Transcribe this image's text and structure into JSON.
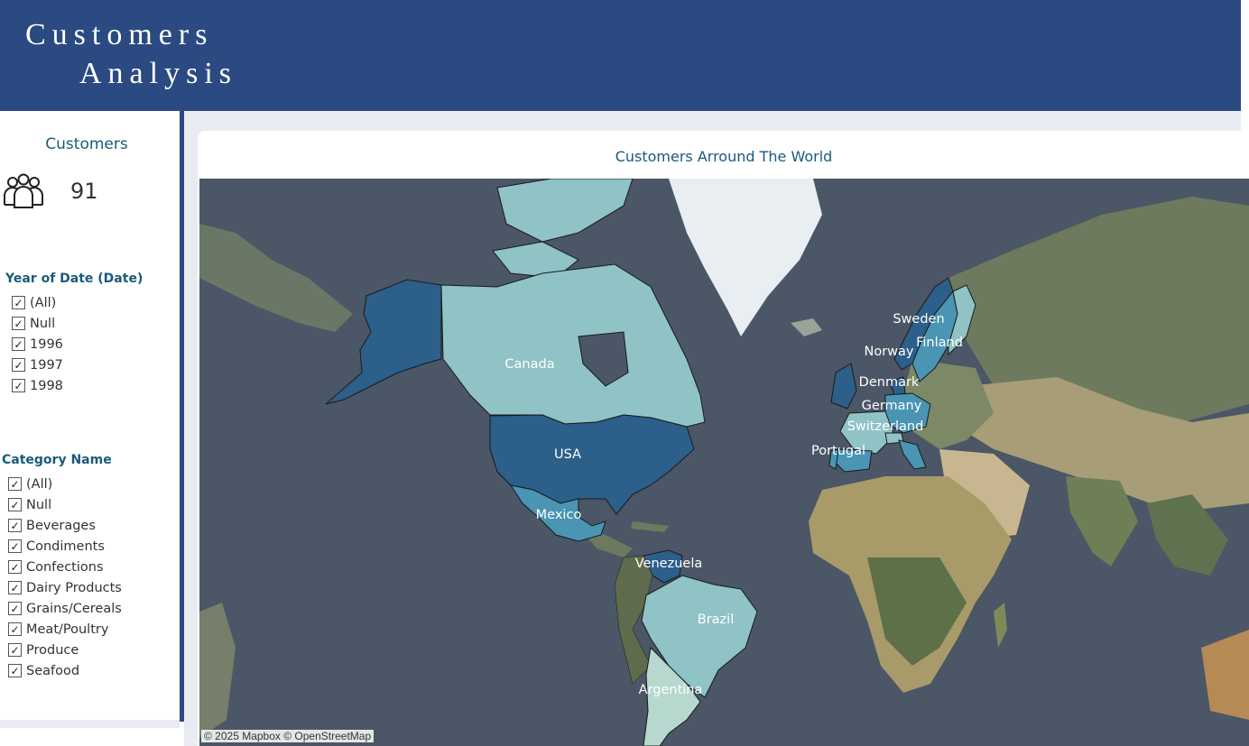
{
  "header": {
    "title_line1": "Customers",
    "title_line2": "Analysis",
    "background_color": "#2b4a82"
  },
  "kpi": {
    "title": "Customers",
    "icon": "people-group-icon",
    "value": "91"
  },
  "filters": {
    "year": {
      "title": "Year of Date (Date)",
      "options": [
        "(All)",
        "Null",
        "1996",
        "1997",
        "1998"
      ],
      "checked": [
        true,
        true,
        true,
        true,
        true
      ]
    },
    "category": {
      "title": "Category Name",
      "options": [
        "(All)",
        "Null",
        "Beverages",
        "Condiments",
        "Confections",
        "Dairy Products",
        "Grains/Cereals",
        "Meat/Poultry",
        "Produce",
        "Seafood"
      ],
      "checked": [
        true,
        true,
        true,
        true,
        true,
        true,
        true,
        true,
        true,
        true
      ]
    }
  },
  "map": {
    "title": "Customers Arround The World",
    "attribution": "© 2025 Mapbox © OpenStreetMap",
    "countries": [
      {
        "name": "Canada",
        "shade": "light"
      },
      {
        "name": "USA",
        "shade": "dark"
      },
      {
        "name": "Mexico",
        "shade": "medium"
      },
      {
        "name": "Venezuela",
        "shade": "dark"
      },
      {
        "name": "Brazil",
        "shade": "light"
      },
      {
        "name": "Argentina",
        "shade": "lightest"
      },
      {
        "name": "Sweden",
        "shade": "medium"
      },
      {
        "name": "Finland",
        "shade": "light"
      },
      {
        "name": "Norway",
        "shade": "dark"
      },
      {
        "name": "Denmark",
        "shade": "dark"
      },
      {
        "name": "Germany",
        "shade": "medium"
      },
      {
        "name": "Switzerland",
        "shade": "light"
      },
      {
        "name": "Portugal",
        "shade": "medium"
      }
    ],
    "colors": {
      "lightest": "#b6d8cf",
      "light": "#8fc3c6",
      "medium": "#4a95b3",
      "dark": "#2c5f8a",
      "ocean": "#4b5666",
      "land": "#6f7a5a",
      "ice": "#e8eef2"
    }
  }
}
